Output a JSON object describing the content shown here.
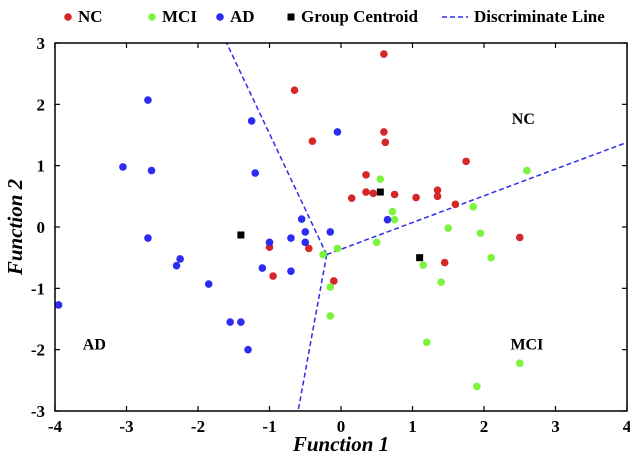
{
  "chart_data": {
    "type": "scatter",
    "xlabel": "Function 1",
    "ylabel": "Function 2",
    "xlim": [
      -4,
      4
    ],
    "ylim": [
      -3,
      3
    ],
    "x_ticks": [
      "-4",
      "-3",
      "-2",
      "-1",
      "0",
      "1",
      "2",
      "3",
      "4"
    ],
    "y_ticks": [
      "3",
      "2",
      "1",
      "0",
      "-1",
      "-2",
      "-3"
    ],
    "grid": false,
    "legend": {
      "placement": "top",
      "items": [
        {
          "label": "NC",
          "marker": "circle",
          "color": "#d62728"
        },
        {
          "label": "MCI",
          "marker": "circle",
          "color": "#7cf33c"
        },
        {
          "label": "AD",
          "marker": "circle",
          "color": "#2c2cf0"
        },
        {
          "label": "Group Centroid",
          "marker": "square",
          "color": "#000000"
        },
        {
          "label": "Discriminate Line",
          "marker": "dashed-line",
          "color": "#2c2cf0"
        }
      ]
    },
    "region_labels": [
      {
        "text": "NC",
        "x": 2.55,
        "y": 1.68
      },
      {
        "text": "MCI",
        "x": 2.6,
        "y": -2.0
      },
      {
        "text": "AD",
        "x": -3.45,
        "y": -2.0
      }
    ],
    "series": [
      {
        "name": "NC",
        "color": "#d62728",
        "points": [
          [
            -0.65,
            2.23
          ],
          [
            0.6,
            2.82
          ],
          [
            -0.4,
            1.4
          ],
          [
            0.6,
            1.55
          ],
          [
            0.62,
            1.38
          ],
          [
            0.35,
            0.85
          ],
          [
            0.35,
            0.57
          ],
          [
            0.45,
            0.55
          ],
          [
            0.75,
            0.53
          ],
          [
            0.15,
            0.47
          ],
          [
            1.05,
            0.48
          ],
          [
            1.35,
            0.5
          ],
          [
            1.35,
            0.6
          ],
          [
            1.75,
            1.07
          ],
          [
            1.6,
            0.37
          ],
          [
            -1.0,
            -0.33
          ],
          [
            -0.95,
            -0.8
          ],
          [
            -0.45,
            -0.35
          ],
          [
            -0.1,
            -0.88
          ],
          [
            1.45,
            -0.58
          ],
          [
            2.5,
            -0.17
          ]
        ]
      },
      {
        "name": "MCI",
        "color": "#7cf33c",
        "points": [
          [
            0.55,
            0.78
          ],
          [
            0.72,
            0.25
          ],
          [
            0.75,
            0.12
          ],
          [
            0.5,
            -0.25
          ],
          [
            -0.05,
            -0.35
          ],
          [
            -0.25,
            -0.45
          ],
          [
            1.5,
            -0.02
          ],
          [
            1.85,
            0.33
          ],
          [
            1.95,
            -0.1
          ],
          [
            2.1,
            -0.5
          ],
          [
            1.15,
            -0.62
          ],
          [
            1.4,
            -0.9
          ],
          [
            2.6,
            0.92
          ],
          [
            -0.15,
            -0.98
          ],
          [
            -0.15,
            -1.45
          ],
          [
            1.2,
            -1.88
          ],
          [
            1.9,
            -2.6
          ],
          [
            2.5,
            -2.22
          ]
        ]
      },
      {
        "name": "AD",
        "color": "#2c2cf0",
        "points": [
          [
            -2.7,
            2.07
          ],
          [
            -1.25,
            1.73
          ],
          [
            -0.05,
            1.55
          ],
          [
            -3.05,
            0.98
          ],
          [
            -2.65,
            0.92
          ],
          [
            -1.2,
            0.88
          ],
          [
            -0.55,
            0.13
          ],
          [
            -0.5,
            -0.08
          ],
          [
            -1.0,
            -0.25
          ],
          [
            -2.7,
            -0.18
          ],
          [
            -0.7,
            -0.18
          ],
          [
            -0.5,
            -0.25
          ],
          [
            -2.25,
            -0.52
          ],
          [
            -2.3,
            -0.63
          ],
          [
            -1.1,
            -0.67
          ],
          [
            -0.7,
            -0.72
          ],
          [
            -1.85,
            -0.93
          ],
          [
            -0.15,
            -0.08
          ],
          [
            0.65,
            0.12
          ],
          [
            -3.95,
            -1.27
          ],
          [
            -1.55,
            -1.55
          ],
          [
            -1.4,
            -1.55
          ],
          [
            -1.3,
            -2.0
          ]
        ]
      },
      {
        "name": "Group Centroid",
        "color": "#000000",
        "marker": "square",
        "points": [
          [
            -1.4,
            -0.13
          ],
          [
            0.55,
            0.57
          ],
          [
            1.1,
            -0.5
          ]
        ]
      }
    ],
    "discriminant_lines": [
      {
        "from": [
          -0.2,
          -0.45
        ],
        "to": [
          -1.6,
          3.0
        ]
      },
      {
        "from": [
          -0.2,
          -0.45
        ],
        "to": [
          4.0,
          1.38
        ]
      },
      {
        "from": [
          -0.2,
          -0.45
        ],
        "to": [
          -0.6,
          -3.0
        ]
      }
    ]
  }
}
